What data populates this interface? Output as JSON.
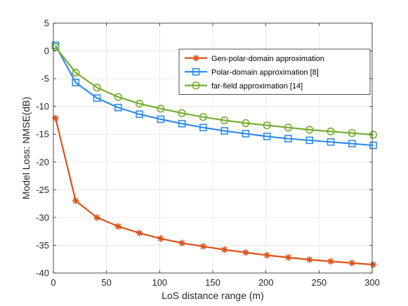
{
  "chart_data": {
    "type": "line",
    "title": "",
    "xlabel": "LoS distance range (m)",
    "ylabel": "Model Loss: NMSE(dB)",
    "xlim": [
      0,
      300
    ],
    "ylim": [
      -40,
      5
    ],
    "xticks": [
      0,
      50,
      100,
      150,
      200,
      250,
      300
    ],
    "yticks": [
      5,
      0,
      -5,
      -10,
      -15,
      -20,
      -25,
      -30,
      -35,
      -40
    ],
    "grid": true,
    "legend_position": "top-right",
    "x": [
      2,
      21,
      41,
      61,
      81,
      101,
      121,
      141,
      161,
      181,
      201,
      221,
      241,
      261,
      281,
      301
    ],
    "series": [
      {
        "name": "Gen-polar-domain approximation",
        "marker": "asterisk",
        "color": "#D95319",
        "values": [
          -12.1,
          -27.0,
          -30.0,
          -31.6,
          -32.8,
          -33.8,
          -34.6,
          -35.2,
          -35.8,
          -36.3,
          -36.8,
          -37.2,
          -37.6,
          -37.9,
          -38.2,
          -38.5
        ]
      },
      {
        "name": "Polar-domain approximation [8]",
        "marker": "square",
        "color": "#2F8CE9",
        "values": [
          1.0,
          -5.7,
          -8.5,
          -10.2,
          -11.4,
          -12.3,
          -13.1,
          -13.8,
          -14.4,
          -14.9,
          -15.4,
          -15.8,
          -16.1,
          -16.4,
          -16.7,
          -17.0
        ]
      },
      {
        "name": "far-field approximation [14]",
        "marker": "circle",
        "color": "#77AC30",
        "values": [
          0.7,
          -3.9,
          -6.6,
          -8.3,
          -9.5,
          -10.4,
          -11.2,
          -11.9,
          -12.5,
          -13.0,
          -13.4,
          -13.8,
          -14.2,
          -14.5,
          -14.8,
          -15.1
        ]
      }
    ]
  }
}
